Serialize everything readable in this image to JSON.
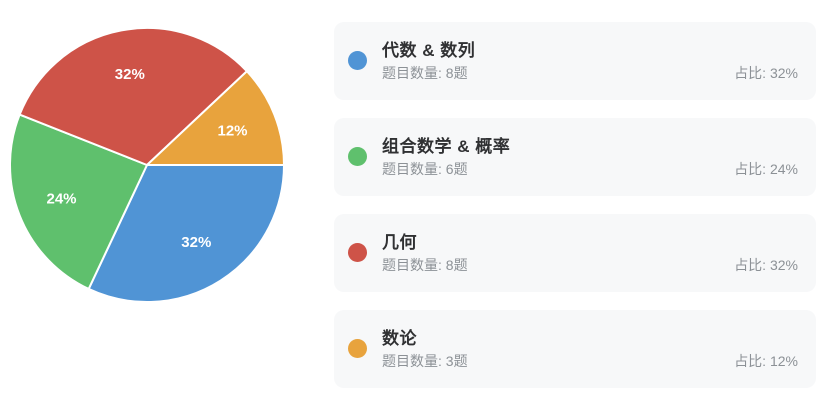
{
  "chart_data": {
    "type": "pie",
    "title": "",
    "start_angle_deg": 0,
    "clockwise": true,
    "legend_position": "right",
    "slice_label_format": "{percent}%",
    "slices": [
      {
        "label": "代数 & 数列",
        "count": 8,
        "percent": 32,
        "color": "#5094D5"
      },
      {
        "label": "组合数学 & 概率",
        "count": 6,
        "percent": 24,
        "color": "#5FC06D"
      },
      {
        "label": "几何",
        "count": 8,
        "percent": 32,
        "color": "#CE5348"
      },
      {
        "label": "数论",
        "count": 3,
        "percent": 12,
        "color": "#E8A33D"
      }
    ]
  },
  "legend": {
    "items": [
      {
        "title": "代数 & 数列",
        "count_text": "题目数量: 8题",
        "ratio_text": "占比: 32%",
        "color": "#5094D5"
      },
      {
        "title": "组合数学 & 概率",
        "count_text": "题目数量: 6题",
        "ratio_text": "占比: 24%",
        "color": "#5FC06D"
      },
      {
        "title": "几何",
        "count_text": "题目数量: 8题",
        "ratio_text": "占比: 32%",
        "color": "#CE5348"
      },
      {
        "title": "数论",
        "count_text": "题目数量: 3题",
        "ratio_text": "占比: 12%",
        "color": "#E8A33D"
      }
    ]
  },
  "colors": {
    "card_bg": "#F7F8F9",
    "title_text": "#303133",
    "muted_text": "#8C9196",
    "pie_label": "#FFFFFF",
    "pie_border": "#FFFFFF"
  }
}
